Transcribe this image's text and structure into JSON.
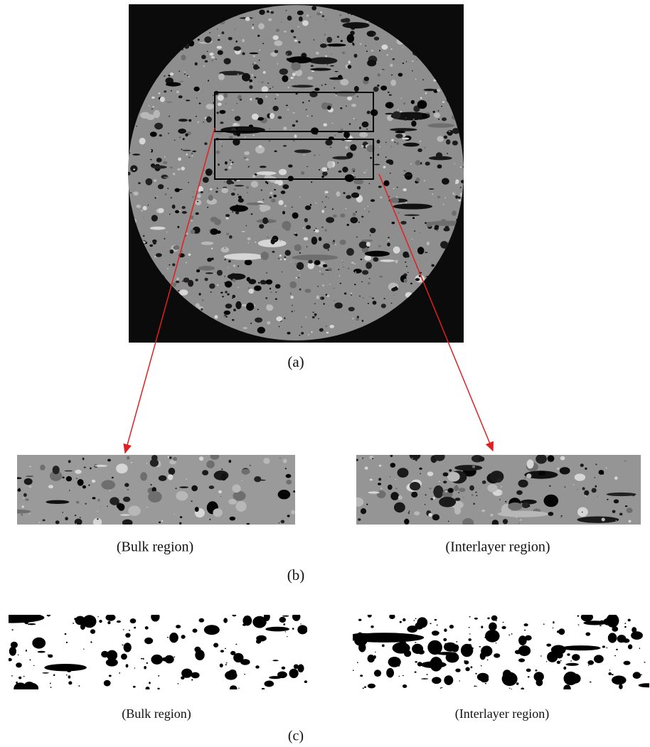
{
  "panels": {
    "a": {
      "label": "(a)"
    },
    "b": {
      "left_caption": "(Bulk region)",
      "right_caption": "(Interlayer region)",
      "label": "(b)"
    },
    "c": {
      "left_caption": "(Bulk region)",
      "right_caption": "(Interlayer region)",
      "label": "(c)"
    }
  }
}
